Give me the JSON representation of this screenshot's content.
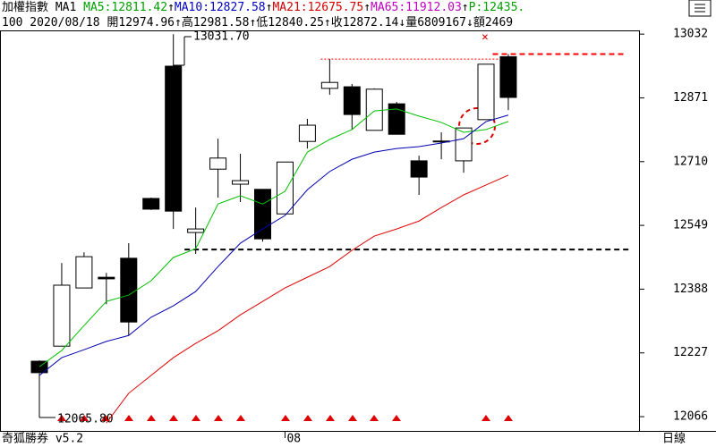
{
  "chart_data": {
    "type": "candlestick",
    "header": [
      {
        "text": "加權指數 MA1 ",
        "color": "#000000"
      },
      {
        "text": "MA5:12811.42",
        "color": "#00a000"
      },
      {
        "text": "↑",
        "color": "#000000"
      },
      {
        "text": "MA10:12827.58",
        "color": "#0000c0"
      },
      {
        "text": "↑",
        "color": "#000000"
      },
      {
        "text": "MA21:12675.75",
        "color": "#d00000"
      },
      {
        "text": "↑",
        "color": "#000000"
      },
      {
        "text": "MA65:11912.03",
        "color": "#c000c0"
      },
      {
        "text": "↑",
        "color": "#000000"
      },
      {
        "text": "P:12435.",
        "color": "#00a000"
      }
    ],
    "info": [
      "100 2020/08/18 開12974.96",
      "↑",
      "高12981.58",
      "↑",
      "低12840.25",
      "↑",
      "收12872.14",
      "↓",
      "量6809167",
      "↓",
      "額2469"
    ],
    "max_label": "13031.70",
    "min_label": "12065.80",
    "footer_left": "奇狐勝券 v5.2",
    "footer_right": "日線",
    "categories": [
      null,
      null,
      null,
      null,
      null,
      null,
      null,
      null,
      null,
      null,
      null,
      "08",
      null,
      null,
      null,
      null,
      null,
      null,
      null,
      null,
      null,
      null
    ],
    "open": [
      12206,
      12244,
      12391,
      12418,
      12466,
      12617,
      12951,
      12531,
      12691,
      12653,
      12640,
      12578,
      12761,
      12895,
      12899,
      12789,
      12856,
      12712,
      12762,
      12712,
      12816,
      12974.96
    ],
    "high": [
      12208,
      12454,
      12481,
      12429,
      12504,
      12619,
      13031.7,
      12594,
      12768,
      12730,
      12640,
      12709,
      12818,
      12969,
      12906,
      12895,
      12861,
      12725,
      12784,
      12795,
      12956,
      12981.58
    ],
    "low": [
      12175,
      12244,
      12391,
      12350,
      12271,
      12588,
      12540,
      12477,
      12619,
      12608,
      12508,
      12578,
      12743,
      12879,
      12791,
      12789,
      12779,
      12626,
      12716,
      12682,
      12816,
      12840.25
    ],
    "close": [
      12177,
      12398,
      12470,
      12414,
      12305,
      12590,
      12585,
      12540,
      12719,
      12662,
      12515,
      12709,
      12802,
      12910,
      12829,
      12893,
      12779,
      12671,
      12761,
      12795,
      12956,
      12872.14
    ],
    "series": [
      {
        "color": "#00c000",
        "values": [
          12192,
          12233,
          12296,
          12357,
          12373,
          12409,
          12468,
          12490,
          12603,
          12624,
          12603,
          12635,
          12734,
          12766,
          12791,
          12838,
          12843,
          12825,
          12809,
          12784,
          12791,
          12811.42
        ]
      },
      {
        "color": "#0000b0",
        "values": [
          12170,
          12215,
          12235,
          12256,
          12271,
          12317,
          12346,
          12382,
          12445,
          12504,
          12540,
          12574,
          12639,
          12685,
          12716,
          12734,
          12743,
          12748,
          12757,
          12768,
          12811,
          12827.58
        ]
      },
      {
        "color": "#e00000",
        "values": [
          null,
          null,
          null,
          12050,
          12125,
          12170,
          12215,
          12251,
          12283,
          12323,
          12357,
          12391,
          12418,
          12445,
          12486,
          12522,
          12540,
          12560,
          12594,
          12626,
          12651,
          12675.75
        ]
      }
    ],
    "hlines": [
      {
        "value": 12488,
        "color": "#000000",
        "from": 6.5,
        "to": 26.5
      },
      {
        "value": 12981.58,
        "color": "#ff0000",
        "from": 20.3,
        "to": 26.2
      },
      {
        "value": 12969,
        "color": "#ff0000",
        "from": 12.6,
        "to": 20.6
      }
    ],
    "ylim": [
      12030,
      13073
    ],
    "yticks": [
      12066,
      12227,
      12388,
      12549,
      12710,
      12871,
      13032
    ]
  }
}
